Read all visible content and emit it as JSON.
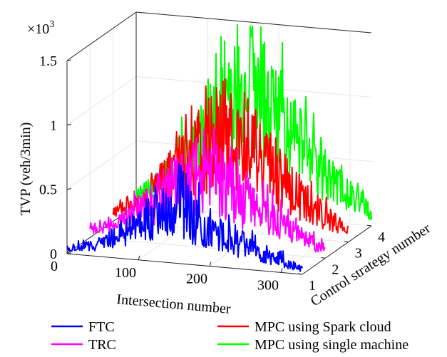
{
  "chart_data": {
    "type": "line",
    "title": "",
    "xlabel": "Intersection number",
    "ylabel": "Control strategy number",
    "zlabel": "TVP (veh/3min)",
    "z_exponent": "×10",
    "z_exponent_power": "3",
    "xlim": [
      0,
      330
    ],
    "ylim": [
      1,
      4
    ],
    "zlim": [
      0,
      1.5
    ],
    "x_ticks": [
      "0",
      "100",
      "200",
      "300"
    ],
    "y_ticks": [
      "1",
      "2",
      "3",
      "4"
    ],
    "z_ticks": [
      "0",
      "0.5",
      "1",
      "1.5"
    ],
    "grid": true,
    "legend_position": "bottom",
    "series": [
      {
        "name": "FTC",
        "color": "#0000ff",
        "y": 1,
        "shape": [
          {
            "x": 0,
            "z": 0.05
          },
          {
            "x": 40,
            "z": 0.1
          },
          {
            "x": 100,
            "z": 0.3
          },
          {
            "x": 130,
            "z": 0.45
          },
          {
            "x": 150,
            "z": 0.52
          },
          {
            "x": 200,
            "z": 0.35
          },
          {
            "x": 260,
            "z": 0.2
          },
          {
            "x": 330,
            "z": 0.05
          }
        ]
      },
      {
        "name": "TRC",
        "color": "#ff00ff",
        "y": 2,
        "shape": [
          {
            "x": 0,
            "z": 0.07
          },
          {
            "x": 40,
            "z": 0.15
          },
          {
            "x": 100,
            "z": 0.45
          },
          {
            "x": 140,
            "z": 0.65
          },
          {
            "x": 170,
            "z": 0.68
          },
          {
            "x": 220,
            "z": 0.45
          },
          {
            "x": 280,
            "z": 0.22
          },
          {
            "x": 330,
            "z": 0.08
          }
        ]
      },
      {
        "name": "MPC using Spark cloud",
        "color": "#ff0000",
        "y": 3,
        "shape": [
          {
            "x": 0,
            "z": 0.08
          },
          {
            "x": 40,
            "z": 0.2
          },
          {
            "x": 100,
            "z": 0.6
          },
          {
            "x": 150,
            "z": 0.9
          },
          {
            "x": 170,
            "z": 0.95
          },
          {
            "x": 220,
            "z": 0.6
          },
          {
            "x": 280,
            "z": 0.3
          },
          {
            "x": 330,
            "z": 0.1
          }
        ]
      },
      {
        "name": "MPC using single machine",
        "color": "#00ff00",
        "y": 4,
        "shape": [
          {
            "x": 0,
            "z": 0.1
          },
          {
            "x": 40,
            "z": 0.25
          },
          {
            "x": 100,
            "z": 0.75
          },
          {
            "x": 150,
            "z": 1.12
          },
          {
            "x": 170,
            "z": 1.18
          },
          {
            "x": 220,
            "z": 0.75
          },
          {
            "x": 280,
            "z": 0.35
          },
          {
            "x": 330,
            "z": 0.12
          }
        ]
      }
    ],
    "legend": [
      {
        "name": "FTC",
        "color": "#0000ff"
      },
      {
        "name": "TRC",
        "color": "#ff00ff"
      },
      {
        "name": "MPC using Spark cloud",
        "color": "#ff0000"
      },
      {
        "name": "MPC using single machine",
        "color": "#00ff00"
      }
    ]
  }
}
